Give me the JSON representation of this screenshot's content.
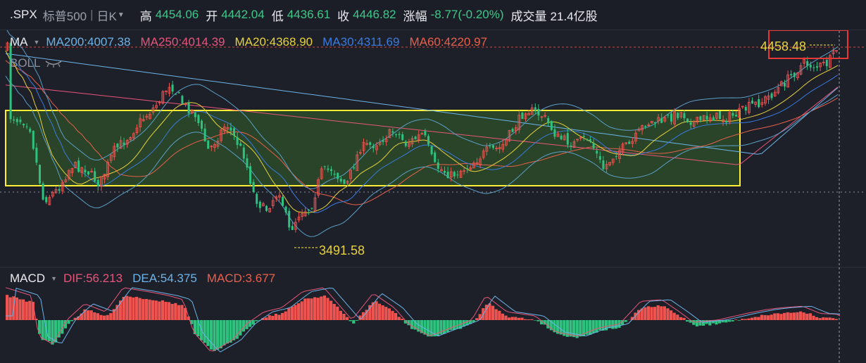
{
  "header": {
    "symbol": ".SPX",
    "name": "标普500",
    "period": "日K",
    "high_label": "高",
    "high": "4454.06",
    "open_label": "开",
    "open": "4442.04",
    "low_label": "低",
    "low": "4436.61",
    "close_label": "收",
    "close": "4446.82",
    "change_label": "涨幅",
    "change": "-8.77(-0.20%)",
    "volume_label": "成交量",
    "volume": "21.4亿股"
  },
  "ma_legend": {
    "title": "MA",
    "items": [
      {
        "text": "MA200:4007.38",
        "color": "#6db3e8"
      },
      {
        "text": "MA250:4014.39",
        "color": "#e8557a"
      },
      {
        "text": "MA20:4368.90",
        "color": "#e8d23c"
      },
      {
        "text": "MA30:4311.69",
        "color": "#3a7be0"
      },
      {
        "text": "MA60:4220.97",
        "color": "#e8604c"
      }
    ]
  },
  "boll_label": "BOLL",
  "annotations": {
    "high_price": "4458.48",
    "low_price": "3491.58"
  },
  "macd_legend": {
    "title": "MACD",
    "items": [
      {
        "text": "DIF:56.213",
        "color": "#e8557a"
      },
      {
        "text": "DEA:54.375",
        "color": "#6db3e8"
      },
      {
        "text": "MACD:3.677",
        "color": "#e8604c"
      }
    ]
  },
  "colors": {
    "up": "#ef5350",
    "down": "#2ec27e",
    "highlight_box": "#ffee33",
    "focus_box": "#e53935",
    "background": "#1d2029"
  },
  "icons": {
    "boll_eye": "eye-closed-icon",
    "dropdown": "caret-down-icon"
  }
}
